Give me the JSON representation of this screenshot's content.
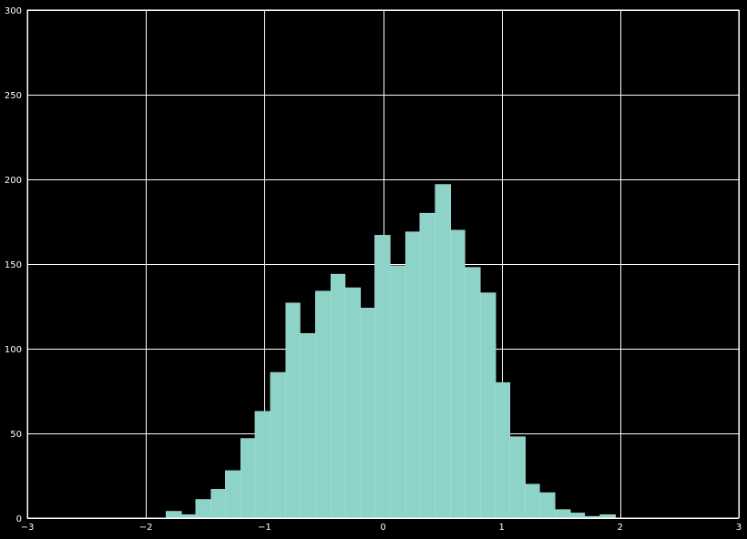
{
  "chart_data": {
    "type": "bar",
    "subtype": "histogram",
    "title": "",
    "xlabel": "",
    "ylabel": "",
    "xlim": [
      -3,
      3
    ],
    "ylim": [
      0,
      300
    ],
    "grid": true,
    "legend": "none",
    "colors": {
      "background": "#000000",
      "bar_fill": "#8dd3c7",
      "bar_edge": "#a6ded5",
      "grid": "#ffffff",
      "axes": "#ffffff",
      "text": "#ffffff"
    },
    "x_ticks": [
      -3,
      -2,
      -1,
      0,
      1,
      2,
      3
    ],
    "x_tick_labels": [
      "−3",
      "−2",
      "−1",
      "0",
      "1",
      "2",
      "3"
    ],
    "y_ticks": [
      0,
      50,
      100,
      150,
      200,
      250,
      300
    ],
    "y_tick_labels": [
      "0",
      "50",
      "100",
      "150",
      "200",
      "250",
      "300"
    ],
    "bins": [
      {
        "x0": -1.83,
        "x1": -1.7,
        "count": 4
      },
      {
        "x0": -1.7,
        "x1": -1.58,
        "count": 2
      },
      {
        "x0": -1.58,
        "x1": -1.45,
        "count": 11
      },
      {
        "x0": -1.45,
        "x1": -1.33,
        "count": 17
      },
      {
        "x0": -1.33,
        "x1": -1.2,
        "count": 28
      },
      {
        "x0": -1.2,
        "x1": -1.08,
        "count": 47
      },
      {
        "x0": -1.08,
        "x1": -0.95,
        "count": 63
      },
      {
        "x0": -0.95,
        "x1": -0.82,
        "count": 86
      },
      {
        "x0": -0.82,
        "x1": -0.7,
        "count": 127
      },
      {
        "x0": -0.7,
        "x1": -0.57,
        "count": 109
      },
      {
        "x0": -0.57,
        "x1": -0.44,
        "count": 134
      },
      {
        "x0": -0.44,
        "x1": -0.32,
        "count": 144
      },
      {
        "x0": -0.32,
        "x1": -0.19,
        "count": 136
      },
      {
        "x0": -0.19,
        "x1": -0.07,
        "count": 124
      },
      {
        "x0": -0.07,
        "x1": 0.06,
        "count": 167
      },
      {
        "x0": 0.06,
        "x1": 0.19,
        "count": 149
      },
      {
        "x0": 0.19,
        "x1": 0.31,
        "count": 169
      },
      {
        "x0": 0.31,
        "x1": 0.44,
        "count": 180
      },
      {
        "x0": 0.44,
        "x1": 0.57,
        "count": 197
      },
      {
        "x0": 0.57,
        "x1": 0.69,
        "count": 170
      },
      {
        "x0": 0.69,
        "x1": 0.82,
        "count": 148
      },
      {
        "x0": 0.82,
        "x1": 0.95,
        "count": 133
      },
      {
        "x0": 0.95,
        "x1": 1.07,
        "count": 80
      },
      {
        "x0": 1.07,
        "x1": 1.2,
        "count": 48
      },
      {
        "x0": 1.2,
        "x1": 1.32,
        "count": 20
      },
      {
        "x0": 1.32,
        "x1": 1.45,
        "count": 15
      },
      {
        "x0": 1.45,
        "x1": 1.58,
        "count": 5
      },
      {
        "x0": 1.58,
        "x1": 1.7,
        "count": 3
      },
      {
        "x0": 1.7,
        "x1": 1.83,
        "count": 1
      },
      {
        "x0": 1.83,
        "x1": 1.96,
        "count": 2
      }
    ]
  }
}
